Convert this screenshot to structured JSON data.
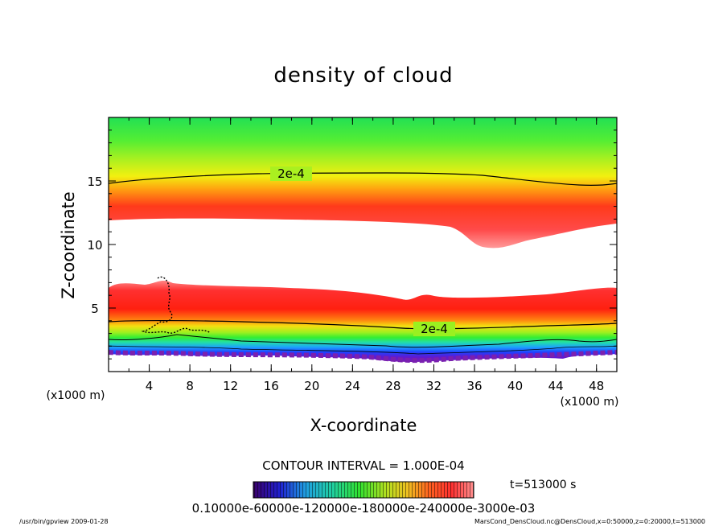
{
  "chart_data": {
    "type": "heatmap",
    "title": "density of cloud",
    "xlabel": "X-coordinate",
    "ylabel": "Z-coordinate",
    "x_unit": "(x1000 m)",
    "y_unit": "(x1000 m)",
    "xlim": [
      0,
      50
    ],
    "ylim": [
      0,
      20
    ],
    "x_ticks": [
      4,
      8,
      12,
      16,
      20,
      24,
      28,
      32,
      36,
      40,
      44,
      48
    ],
    "y_ticks": [
      5,
      10,
      15
    ],
    "x_minor_step": 2,
    "y_minor_step": 1,
    "contour_labels": [
      {
        "text": "2e-4",
        "x": 17.5,
        "z": 15.5
      },
      {
        "text": "2e-4",
        "x": 34.0,
        "z": 3.4
      }
    ],
    "contour_interval_text": "CONTOUR INTERVAL = 1.000E-04",
    "time_label": "t=513000 s",
    "colorbar_labels": "0.10000e-60000e-120000e-180000e-240000e-3000e-03",
    "colorbar_range": [
      0.0001,
      0.0003
    ],
    "footer_left": "/usr/bin/gpview   2009-01-28",
    "footer_right": "MarsCond_DensCloud.nc@DensCloud,x=0:50000,z=0:20000,t=513000"
  }
}
